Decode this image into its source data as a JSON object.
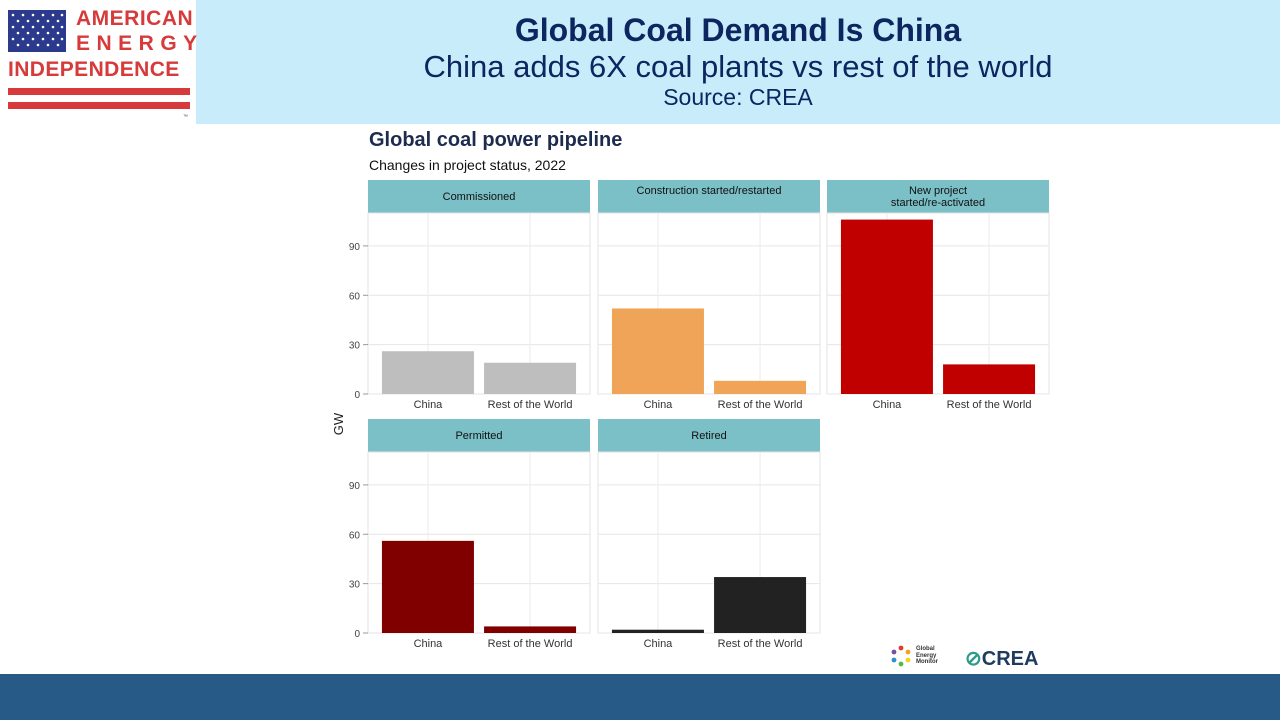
{
  "header": {
    "title": "Global Coal Demand Is China",
    "subtitle": "China adds 6X coal plants vs rest of the world",
    "source": "Source: CREA"
  },
  "logo": {
    "line1": "AMERICAN",
    "line2": "ENERGY",
    "line3": "INDEPENDENCE",
    "trademark": "™",
    "icon": "us-flag-icon"
  },
  "chart_data": {
    "type": "bar",
    "title": "Global coal power pipeline",
    "subtitle": "Changes in project status, 2022",
    "ylabel": "GW",
    "xlabel": "",
    "ylim": [
      0,
      110
    ],
    "yticks": [
      0,
      30,
      60,
      90
    ],
    "categories": [
      "China",
      "Rest of the World"
    ],
    "grid": true,
    "panels": [
      {
        "name": "Commissioned",
        "values": [
          26,
          19
        ],
        "color": "#bebebe"
      },
      {
        "name": "Construction started/restarted",
        "values": [
          52,
          8
        ],
        "color": "#f0a457"
      },
      {
        "name": "New project started/re-activated",
        "values": [
          106,
          18
        ],
        "color": "#c00000"
      },
      {
        "name": "Permitted",
        "values": [
          56,
          4
        ],
        "color": "#800000"
      },
      {
        "name": "Retired",
        "values": [
          2,
          34
        ],
        "color": "#222222"
      }
    ]
  },
  "footer_logos": {
    "gem_line1": "Global",
    "gem_line2": "Energy",
    "gem_line3": "Monitor",
    "crea": "CREA",
    "crea_mark": "⊘"
  },
  "colors": {
    "header_bg": "#c9ecfb",
    "title_color": "#0d2660",
    "strip_bg": "#7bbfc7",
    "footer_bg": "#285a87",
    "logo_red": "#d63a3a",
    "flag_blue": "#2b3a8c"
  }
}
